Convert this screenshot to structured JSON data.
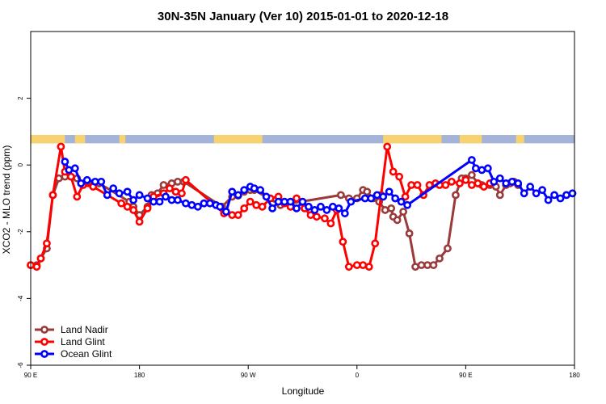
{
  "chart_data": {
    "type": "line",
    "title": "30N-35N January (Ver 10)   2015-01-01 to 2020-12-18",
    "xlabel": "Longitude",
    "ylabel": "XCO2 - MLO trend (ppm)",
    "xlim": [
      -90,
      180
    ],
    "ylim": [
      -6,
      4
    ],
    "x_ticks": [
      {
        "value": -90,
        "label": "90 E"
      },
      {
        "value": -36,
        "label": "180"
      },
      {
        "value": 18,
        "label": "90 W"
      },
      {
        "value": 72,
        "label": "0"
      },
      {
        "value": 126,
        "label": "90 E"
      },
      {
        "value": 180,
        "label": "180"
      }
    ],
    "y_ticks": [
      {
        "value": -6,
        "label": "-6"
      },
      {
        "value": -4,
        "label": "-4"
      },
      {
        "value": -2,
        "label": "-2"
      },
      {
        "value": 0,
        "label": "0"
      },
      {
        "value": 2,
        "label": "2"
      }
    ],
    "land_ocean_strip": {
      "y_range": [
        0.65,
        0.9
      ],
      "land_color": "#f8d26e",
      "ocean_color": "#a3b4d8",
      "land_intervals": [
        [
          -90,
          -73
        ],
        [
          -68,
          -63
        ],
        [
          -46,
          -43
        ],
        [
          1,
          25
        ],
        [
          85,
          114
        ],
        [
          123,
          134
        ],
        [
          151,
          155
        ]
      ]
    },
    "legend_position": "bottom-left",
    "grid": false,
    "series": [
      {
        "name": "Land Nadir",
        "color": "#9a3a3a",
        "x": [
          -90,
          -87,
          -85,
          -82,
          -79,
          -76,
          -73,
          -70,
          -67,
          -63,
          -59,
          -56,
          -41,
          -39,
          -36,
          -32,
          -30,
          -27,
          -24,
          -20,
          -17,
          -14,
          5,
          10,
          13,
          16,
          19,
          21,
          34,
          64,
          68,
          72,
          75,
          77,
          80,
          83,
          86,
          89,
          90,
          92,
          95,
          98,
          101,
          104,
          107,
          110,
          113,
          117,
          121,
          124,
          126,
          129,
          132,
          134,
          138,
          141,
          143,
          146,
          148,
          150,
          152
        ],
        "y": [
          -3.0,
          -3.0,
          -2.8,
          -2.5,
          -0.9,
          -0.4,
          -0.35,
          -0.35,
          -0.4,
          -0.55,
          -0.6,
          -0.55,
          -1.1,
          -1.25,
          -1.5,
          -1.25,
          -0.9,
          -0.85,
          -0.6,
          -0.55,
          -0.5,
          -0.5,
          -1.25,
          -0.95,
          -0.92,
          -0.8,
          -0.75,
          -0.75,
          -1.2,
          -0.9,
          -1.0,
          -1.0,
          -0.75,
          -0.8,
          -1.0,
          -1.1,
          -1.35,
          -1.3,
          -1.55,
          -1.65,
          -1.4,
          -2.05,
          -3.05,
          -3.0,
          -3.0,
          -3.0,
          -2.8,
          -2.5,
          -0.9,
          -0.4,
          -0.4,
          -0.3,
          -0.55,
          -0.6,
          -0.6,
          -0.65,
          -0.9,
          -0.6,
          -0.55,
          -0.5,
          -0.6
        ]
      },
      {
        "name": "Land Glint",
        "color": "#ff0000",
        "x": [
          -90,
          -87,
          -85,
          -82,
          -79,
          -75,
          -73,
          -70,
          -67,
          -64,
          -59,
          -45,
          -42,
          -39,
          -36,
          -32,
          -29,
          -24,
          -21,
          -18,
          -15,
          -13,
          6,
          10,
          13,
          16,
          19,
          22,
          25,
          29,
          33,
          36,
          39,
          42,
          46,
          49,
          52,
          56,
          59,
          62,
          65,
          68,
          72,
          75,
          78,
          81,
          84,
          87,
          90,
          93,
          96,
          99,
          102,
          105,
          108,
          111,
          113,
          116,
          119,
          123,
          126,
          129,
          132,
          135,
          138
        ],
        "y": [
          -3.0,
          -3.05,
          -2.8,
          -2.35,
          -0.9,
          0.55,
          -0.2,
          -0.35,
          -0.95,
          -0.6,
          -0.65,
          -1.15,
          -1.25,
          -1.35,
          -1.7,
          -1.3,
          -0.95,
          -0.85,
          -0.7,
          -0.8,
          -0.85,
          -0.45,
          -1.45,
          -1.5,
          -1.5,
          -1.3,
          -1.1,
          -1.2,
          -1.25,
          -1.0,
          -0.95,
          -1.15,
          -1.25,
          -1.0,
          -1.3,
          -1.5,
          -1.55,
          -1.6,
          -1.75,
          -1.35,
          -2.3,
          -3.05,
          -3.0,
          -3.0,
          -3.05,
          -2.35,
          -0.9,
          0.55,
          -0.2,
          -0.35,
          -0.95,
          -0.6,
          -0.6,
          -0.9,
          -0.6,
          -0.55,
          -0.6,
          -0.6,
          -0.5,
          -0.55,
          -0.45,
          -0.6,
          -0.55,
          -0.65,
          -0.55
        ]
      },
      {
        "name": "Ocean Glint",
        "color": "#0000ff",
        "x": [
          -73,
          -71,
          -68,
          -65,
          -62,
          -58,
          -55,
          -52,
          -49,
          -46,
          -42,
          -39,
          -36,
          -32,
          -29,
          -26,
          -23,
          -20,
          -17,
          -13,
          -10,
          -7,
          -4,
          -1,
          2,
          4,
          7,
          10,
          13,
          16,
          19,
          21,
          24,
          27,
          30,
          33,
          36,
          39,
          42,
          45,
          48,
          51,
          54,
          57,
          60,
          63,
          66,
          69,
          76,
          79,
          82,
          85,
          88,
          91,
          94,
          97,
          129,
          131,
          134,
          137,
          140,
          143,
          146,
          149,
          152,
          155,
          158,
          161,
          164,
          167,
          170,
          173,
          176,
          179
        ],
        "y": [
          0.1,
          -0.15,
          -0.1,
          -0.55,
          -0.45,
          -0.5,
          -0.5,
          -0.9,
          -0.7,
          -0.85,
          -0.8,
          -1.05,
          -0.9,
          -1.0,
          -1.1,
          -1.1,
          -0.95,
          -1.05,
          -1.05,
          -1.15,
          -1.2,
          -1.25,
          -1.15,
          -1.15,
          -1.2,
          -1.25,
          -1.4,
          -0.8,
          -0.9,
          -0.75,
          -0.65,
          -0.7,
          -0.75,
          -0.95,
          -1.3,
          -1.1,
          -1.1,
          -1.1,
          -1.3,
          -1.1,
          -1.25,
          -1.35,
          -1.25,
          -1.35,
          -1.25,
          -1.3,
          -1.45,
          -1.1,
          -1.0,
          -1.0,
          -0.9,
          -0.95,
          -0.8,
          -1.0,
          -1.1,
          -1.2,
          0.15,
          -0.1,
          -0.15,
          -0.1,
          -0.5,
          -0.4,
          -0.55,
          -0.5,
          -0.55,
          -0.85,
          -0.65,
          -0.85,
          -0.75,
          -1.05,
          -0.9,
          -1.0,
          -0.9,
          -0.85
        ]
      }
    ]
  }
}
